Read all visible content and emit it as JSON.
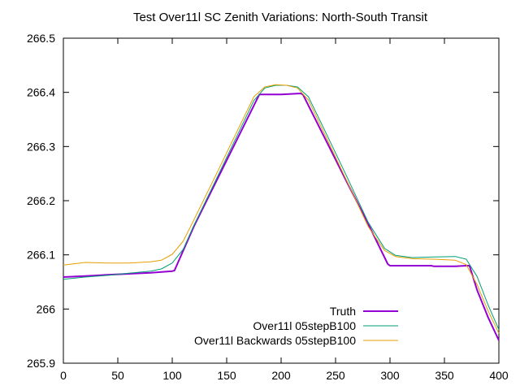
{
  "chart_data": {
    "type": "line",
    "title": "Test Over11l SC Zenith Variations: North-South Transit",
    "xlabel": "",
    "ylabel": "",
    "xlim": [
      0,
      400
    ],
    "ylim": [
      265.9,
      266.5
    ],
    "x_ticks": [
      "0",
      "50",
      "100",
      "150",
      "200",
      "250",
      "300",
      "350",
      "400"
    ],
    "y_ticks": [
      "265.9",
      "266",
      "266.1",
      "266.2",
      "266.3",
      "266.4",
      "266.5"
    ],
    "grid": false,
    "legend_position": "bottom-right",
    "series": [
      {
        "name": "Truth",
        "color": "#9400d3",
        "x": [
          0,
          20,
          40,
          60,
          80,
          100,
          102,
          120,
          140,
          160,
          180,
          200,
          218,
          220,
          240,
          260,
          280,
          298,
          300,
          320,
          338,
          340,
          360,
          370,
          373,
          380,
          390,
          400
        ],
        "y": [
          266.059,
          266.061,
          266.063,
          266.065,
          266.067,
          266.07,
          266.071,
          266.153,
          266.234,
          266.315,
          266.396,
          266.396,
          266.398,
          266.396,
          266.316,
          266.236,
          266.157,
          266.083,
          266.08,
          266.08,
          266.08,
          266.079,
          266.079,
          266.08,
          266.08,
          266.035,
          265.985,
          265.942
        ]
      },
      {
        "name": "Over11l 05stepB100",
        "color": "#009e73",
        "x": [
          0,
          20,
          40,
          60,
          80,
          90,
          100,
          110,
          120,
          140,
          160,
          175,
          185,
          195,
          205,
          215,
          225,
          240,
          260,
          280,
          295,
          305,
          320,
          340,
          360,
          370,
          380,
          390,
          400
        ],
        "y": [
          266.055,
          266.059,
          266.062,
          266.066,
          266.07,
          266.074,
          266.085,
          266.11,
          266.155,
          266.238,
          266.322,
          266.385,
          266.408,
          266.413,
          266.413,
          266.41,
          266.392,
          266.33,
          266.246,
          266.16,
          266.112,
          266.099,
          266.095,
          266.096,
          266.097,
          266.092,
          266.06,
          266.008,
          265.962
        ]
      },
      {
        "name": "Over11l Backwards 05stepB100",
        "color": "#e69f00",
        "x": [
          0,
          20,
          40,
          60,
          80,
          90,
          100,
          110,
          120,
          140,
          160,
          175,
          185,
          195,
          205,
          215,
          225,
          240,
          260,
          280,
          295,
          305,
          320,
          340,
          360,
          370,
          380,
          390,
          400
        ],
        "y": [
          266.081,
          266.086,
          266.085,
          266.085,
          266.087,
          266.09,
          266.101,
          266.125,
          266.165,
          266.247,
          266.33,
          266.392,
          266.41,
          266.414,
          266.413,
          266.408,
          266.386,
          266.323,
          266.238,
          266.152,
          266.108,
          266.097,
          266.093,
          266.092,
          266.09,
          266.082,
          266.045,
          265.997,
          265.955
        ]
      }
    ]
  }
}
